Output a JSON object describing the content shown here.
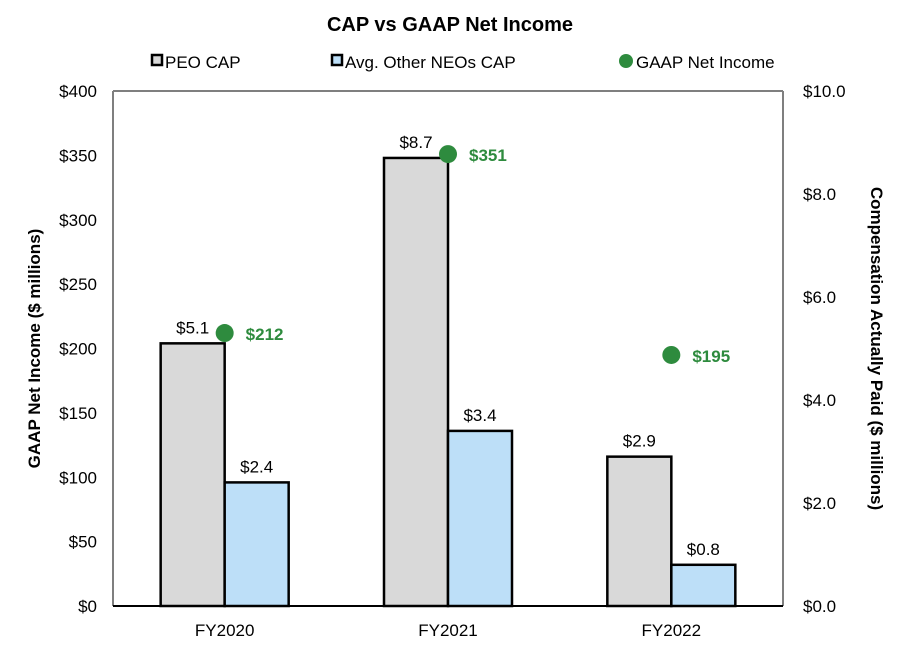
{
  "chart_data": {
    "type": "bar",
    "title": "CAP vs GAAP Net Income",
    "categories": [
      "FY2020",
      "FY2021",
      "FY2022"
    ],
    "series": [
      {
        "name": "PEO CAP",
        "axis": "right",
        "values": [
          5.1,
          8.7,
          2.9
        ],
        "labels": [
          "$5.1",
          "$8.7",
          "$2.9"
        ],
        "color": "#d9d9d9"
      },
      {
        "name": "Avg. Other NEOs CAP",
        "axis": "right",
        "values": [
          2.4,
          3.4,
          0.8
        ],
        "labels": [
          "$2.4",
          "$3.4",
          "$0.8"
        ],
        "color": "#bddff8"
      },
      {
        "name": "GAAP Net Income",
        "axis": "left",
        "type": "scatter",
        "values": [
          212,
          351,
          195
        ],
        "labels": [
          "$212",
          "$351",
          "$195"
        ],
        "color": "#2e8b3e"
      }
    ],
    "ylabel_left": "GAAP Net Income ($ millions)",
    "ylabel_right": "Compensation Actually Paid ($ millions)",
    "ylim_left": [
      0,
      400
    ],
    "ylim_right": [
      0,
      10
    ],
    "yticks_left": [
      "$0",
      "$50",
      "$100",
      "$150",
      "$200",
      "$250",
      "$300",
      "$350",
      "$400"
    ],
    "yticks_right": [
      "$0.0",
      "$2.0",
      "$4.0",
      "$6.0",
      "$8.0",
      "$10.0"
    ],
    "legend": "top",
    "grid": false
  }
}
